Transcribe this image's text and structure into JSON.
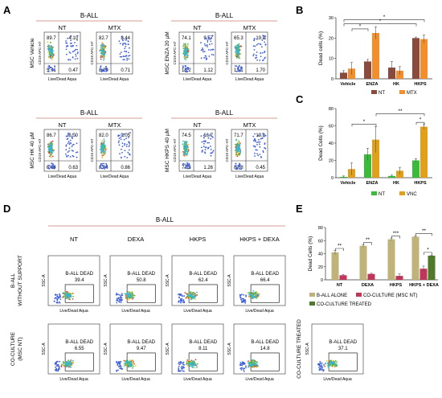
{
  "panel_letters": {
    "A": "A",
    "B": "B",
    "C": "C",
    "D": "D",
    "E": "E"
  },
  "panel_a": {
    "group_label": "B-ALL",
    "col_nt": "NT",
    "col_mtx": "MTX",
    "xlabel": "Live/Dead Aqua",
    "ylabel": "CD19 APC-H7",
    "row_labels": [
      "MSC  Vehicle",
      "MSC  ENZA 20 µM",
      "MSC  HK 40 µM",
      "MSC  HKPS 40 µM"
    ],
    "plots": [
      {
        "q": [
          "89.7",
          "4.10",
          "5.71",
          "0.47"
        ]
      },
      {
        "q": [
          "82.7",
          "8.44",
          "8.20",
          "0.71"
        ]
      },
      {
        "q": [
          "74.1",
          "9.57",
          "15.2",
          "1.12"
        ]
      },
      {
        "q": [
          "65.3",
          "19.9",
          "13.1",
          "1.70"
        ]
      },
      {
        "q": [
          "86.7",
          "6.00",
          "6.64",
          "0.63"
        ]
      },
      {
        "q": [
          "82.0",
          "9.05",
          "8.04",
          "0.86"
        ]
      },
      {
        "q": [
          "74.5",
          "16.7",
          "7.53",
          "1.26"
        ]
      },
      {
        "q": [
          "71.7",
          "19.8",
          "8.08",
          "0.45"
        ]
      }
    ]
  },
  "panel_d": {
    "group_label": "B-ALL",
    "columns": [
      "NT",
      "DEXA",
      "HKPS",
      "HKPS + DEXA"
    ],
    "xlabel": "Live/Dead Aqua",
    "ylabel": "SSC-A",
    "gate_label": "B-ALL DEAD",
    "row_labels": [
      [
        "B-ALL",
        "WITHOUT SUPPORT"
      ],
      [
        "CO-CULTURE",
        "(MSC NT)"
      ]
    ],
    "row1": [
      "39.4",
      "50.8",
      "62.4",
      "66.4"
    ],
    "row2": [
      "6.55",
      "9.47",
      "8.11",
      "14.8"
    ],
    "treated": {
      "label": "CO-CULTURE TREATED",
      "value": "37.1"
    }
  },
  "colors": {
    "nt_b": "#8a4a3c",
    "mtx": "#f28e2b",
    "nt_c": "#3cba3c",
    "vnc": "#e0a01a",
    "alone": "#bfb37a",
    "coc": "#c0365a",
    "treated": "#4f7a2a"
  },
  "chart_data": [
    {
      "panel": "B",
      "type": "bar",
      "ylabel": "Dead cells (%)",
      "categories": [
        "Vehicle",
        "ENZA",
        "HK",
        "HKPS"
      ],
      "ylim": [
        0,
        30
      ],
      "yticks": [
        "0",
        "10",
        "20",
        "30"
      ],
      "series": [
        {
          "name": "NT",
          "values": [
            3,
            8.5,
            5.5,
            20
          ],
          "errors": [
            1,
            1,
            3,
            0.5
          ]
        },
        {
          "name": "MTX",
          "values": [
            5,
            22.5,
            4,
            19.5
          ],
          "errors": [
            3,
            3,
            2,
            2
          ]
        }
      ],
      "significance": [
        "*",
        "*",
        "*"
      ]
    },
    {
      "panel": "C",
      "type": "bar",
      "ylabel": "Dead Cells (%)",
      "categories": [
        "Vehicle",
        "ENZA",
        "HK",
        "HKPS"
      ],
      "ylim": [
        0,
        80
      ],
      "yticks": [
        "0",
        "20",
        "40",
        "60",
        "80"
      ],
      "series": [
        {
          "name": "NT",
          "values": [
            1,
            27,
            2,
            20
          ],
          "errors": [
            1,
            7,
            1,
            2
          ]
        },
        {
          "name": "VNC",
          "values": [
            10,
            44,
            8,
            59
          ],
          "errors": [
            7,
            15,
            4,
            3
          ]
        }
      ],
      "significance": [
        "**",
        "*",
        "*"
      ]
    },
    {
      "panel": "E",
      "type": "bar",
      "ylabel": "Dead Cells (%)",
      "categories": [
        "NT",
        "DEXA",
        "HKPS",
        "HKPS + DEXA"
      ],
      "ylim": [
        0,
        80
      ],
      "yticks": [
        "0",
        "20",
        "40",
        "60",
        "80"
      ],
      "series": [
        {
          "name": "B-ALL ALONE",
          "values": [
            42,
            52,
            62,
            66
          ],
          "errors": [
            3,
            2,
            2,
            1
          ]
        },
        {
          "name": "CO-CULTURE (MSC NT)",
          "values": [
            7,
            9,
            6,
            17
          ],
          "errors": [
            1,
            1,
            3,
            4
          ]
        },
        {
          "name": "CO-CULTURE TREATED",
          "values": [
            null,
            null,
            null,
            37
          ],
          "errors": [
            null,
            null,
            null,
            1
          ]
        }
      ],
      "significance": [
        "**",
        "**",
        "***",
        "**",
        "*"
      ]
    }
  ]
}
